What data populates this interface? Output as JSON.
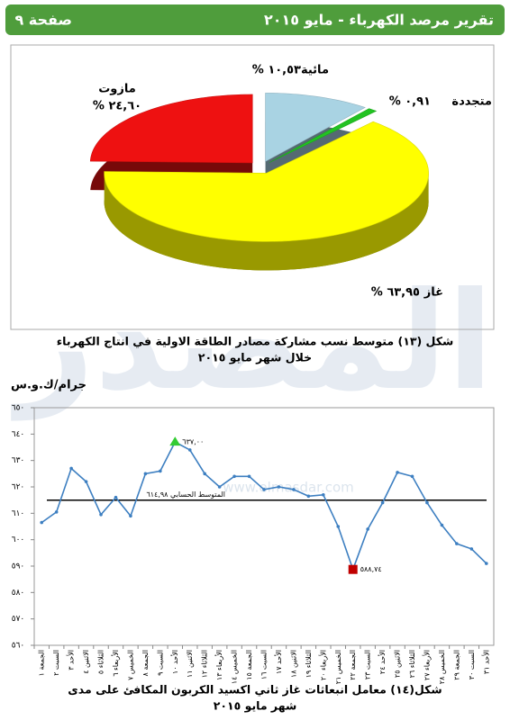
{
  "header": {
    "title": "تقرير مرصد الكهرباء - مايو ٢٠١٥",
    "page": "صفحة ٩"
  },
  "watermark": {
    "logo": "المصدر",
    "url": "www.elmasdar.com"
  },
  "chart_data": [
    {
      "type": "pie",
      "categories": [
        "مائية",
        "متجددة",
        "غاز",
        "مازوت"
      ],
      "values": [
        10.53,
        0.91,
        63.95,
        24.6
      ],
      "value_labels": [
        "١٠,٥٣ %",
        "٠,٩١ %",
        "٦٣,٩٥ %",
        "٢٤,٦٠ %"
      ],
      "colors": [
        "#a9d3e3",
        "#22c322",
        "#ffff00",
        "#ee1111"
      ],
      "caption": [
        "شكل (١٣) متوسط نسب مشاركة مصادر الطاقة الاولية في انتاج الكهرباء",
        "خلال شهر مايو ٢٠١٥"
      ]
    },
    {
      "type": "line",
      "y_label": "جرام/ك.و.س",
      "categories": [
        "الجمعة ١",
        "السبت ٢",
        "الأحد ٣",
        "الاثنين ٤",
        "الثلاثاء ٥",
        "الأربعاء ٦",
        "الخميس ٧",
        "الجمعة ٨",
        "السبت ٩",
        "الأحد ١٠",
        "الاثنين ١١",
        "الثلاثاء ١٢",
        "الأربعاء ١٣",
        "الخميس ١٤",
        "الجمعة ١٥",
        "السبت ١٦",
        "الأحد ١٧",
        "الاثنين ١٨",
        "الثلاثاء ١٩",
        "الأربعاء ٢٠",
        "الخميس ٢١",
        "الجمعة ٢٢",
        "السبت ٢٣",
        "الأحد ٢٤",
        "الاثنين ٢٥",
        "الثلاثاء ٢٦",
        "الأربعاء ٢٧",
        "الخميس ٢٨",
        "الجمعة ٢٩",
        "السبت ٣٠",
        "الأحد ٣١"
      ],
      "series": [
        {
          "color": "#3d7fc1",
          "values": [
            606.5,
            610.5,
            627,
            622,
            609.5,
            616,
            609,
            625,
            626,
            637,
            634,
            625,
            620,
            624,
            624,
            619,
            620,
            619,
            616.5,
            617,
            605,
            588.74,
            604,
            614,
            625.5,
            624,
            614,
            605.5,
            598.5,
            596.5,
            591
          ],
          "value_labels": [
            null,
            null,
            null,
            null,
            null,
            null,
            null,
            null,
            null,
            "٦٣٧,٠٠",
            null,
            null,
            null,
            null,
            null,
            null,
            null,
            null,
            null,
            null,
            null,
            "٥٨٨,٧٤",
            null,
            null,
            null,
            null,
            null,
            null,
            null,
            null,
            null
          ]
        }
      ],
      "max_color": "#33cc33",
      "min_color": "#c00000",
      "mean": {
        "value": 614.98,
        "label": "المتوسط الحسابي ٦١٤,٩٨"
      },
      "ylim": [
        560,
        650
      ],
      "yticks": [
        {
          "value": 560,
          "label": "٥٦٠"
        },
        {
          "value": 570,
          "label": "٥٧٠"
        },
        {
          "value": 580,
          "label": "٥٨٠"
        },
        {
          "value": 590,
          "label": "٥٩٠"
        },
        {
          "value": 600,
          "label": "٦٠٠"
        },
        {
          "value": 610,
          "label": "٦١٠"
        },
        {
          "value": 620,
          "label": "٦٢٠"
        },
        {
          "value": 630,
          "label": "٦٣٠"
        },
        {
          "value": 640,
          "label": "٦٤٠"
        },
        {
          "value": 650,
          "label": "٦٥٠"
        }
      ],
      "grid": false,
      "caption": [
        "شكل(١٤) معامل انبعاثات غاز ثاني اكسيد الكربون المكافئ على مدى",
        "شهر مايو ٢٠١٥"
      ]
    }
  ]
}
